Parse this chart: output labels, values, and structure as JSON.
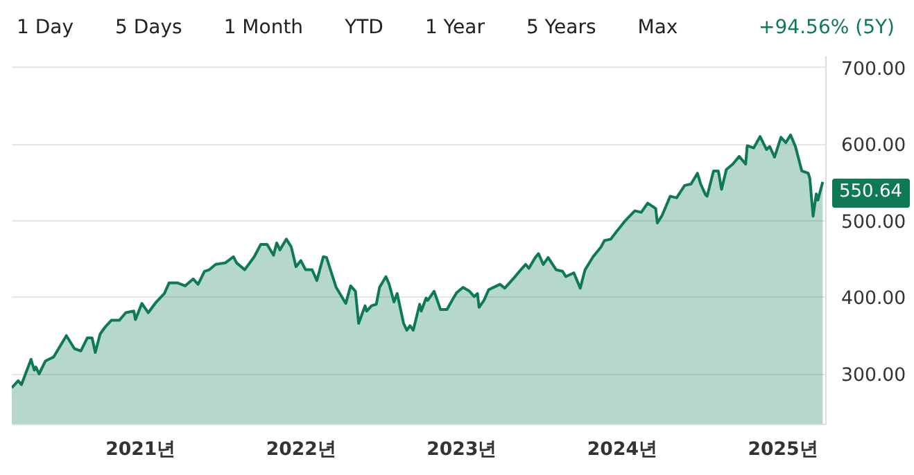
{
  "chart_data": {
    "type": "area",
    "annotations": [
      "1 Day",
      "5 Days",
      "1 Month",
      "YTD",
      "1 Year",
      "5 Years",
      "Max",
      "+94.56% (5Y)"
    ],
    "x": [
      2020.2,
      2020.24,
      2020.26,
      2020.32,
      2020.34,
      2020.35,
      2020.37,
      2020.41,
      2020.46,
      2020.5,
      2020.54,
      2020.59,
      2020.63,
      2020.67,
      2020.7,
      2020.72,
      2020.75,
      2020.78,
      2020.82,
      2020.87,
      2020.91,
      2020.96,
      2020.97,
      2021.01,
      2021.05,
      2021.1,
      2021.15,
      2021.18,
      2021.23,
      2021.28,
      2021.33,
      2021.36,
      2021.4,
      2021.43,
      2021.47,
      2021.53,
      2021.58,
      2021.6,
      2021.65,
      2021.71,
      2021.75,
      2021.79,
      2021.83,
      2021.85,
      2021.87,
      2021.91,
      2021.94,
      2021.97,
      2022.0,
      2022.03,
      2022.07,
      2022.1,
      2022.14,
      2022.16,
      2022.22,
      2022.28,
      2022.31,
      2022.34,
      2022.36,
      2022.4,
      2022.41,
      2022.44,
      2022.47,
      2022.49,
      2022.53,
      2022.55,
      2022.58,
      2022.6,
      2022.64,
      2022.66,
      2022.68,
      2022.7,
      2022.74,
      2022.75,
      2022.78,
      2022.79,
      2022.83,
      2022.87,
      2022.91,
      2022.95,
      2022.97,
      2023.01,
      2023.05,
      2023.08,
      2023.1,
      2023.11,
      2023.14,
      2023.17,
      2023.24,
      2023.27,
      2023.33,
      2023.37,
      2023.4,
      2023.42,
      2023.46,
      2023.48,
      2023.51,
      2023.54,
      2023.59,
      2023.63,
      2023.65,
      2023.7,
      2023.74,
      2023.77,
      2023.82,
      2023.87,
      2023.89,
      2023.93,
      2023.97,
      2024.02,
      2024.08,
      2024.12,
      2024.16,
      2024.21,
      2024.22,
      2024.25,
      2024.3,
      2024.34,
      2024.39,
      2024.43,
      2024.47,
      2024.49,
      2024.52,
      2024.53,
      2024.57,
      2024.6,
      2024.62,
      2024.65,
      2024.69,
      2024.73,
      2024.77,
      2024.78,
      2024.82,
      2024.86,
      2024.9,
      2024.92,
      2024.95,
      2024.99,
      2025.02,
      2025.05,
      2025.08,
      2025.12,
      2025.16,
      2025.17,
      2025.19,
      2025.21,
      2025.22,
      2025.25
    ],
    "series": [
      {
        "color": "#0e7a53",
        "values": [
          282,
          291,
          286,
          319,
          305,
          309,
          300,
          317,
          322,
          336,
          350,
          333,
          330,
          347,
          347,
          328,
          352,
          361,
          370,
          370,
          380,
          382,
          371,
          392,
          380,
          394,
          405,
          419,
          419,
          415,
          424,
          417,
          434,
          436,
          443,
          445,
          453,
          445,
          436,
          453,
          469,
          469,
          455,
          471,
          462,
          476,
          466,
          440,
          448,
          436,
          436,
          422,
          453,
          452,
          413,
          392,
          415,
          408,
          366,
          389,
          382,
          389,
          391,
          413,
          427,
          417,
          394,
          405,
          366,
          357,
          363,
          357,
          391,
          382,
          399,
          396,
          408,
          384,
          384,
          399,
          406,
          413,
          408,
          401,
          405,
          387,
          396,
          410,
          417,
          412,
          426,
          436,
          443,
          438,
          452,
          457,
          443,
          452,
          436,
          434,
          427,
          432,
          412,
          436,
          453,
          466,
          474,
          476,
          487,
          500,
          513,
          511,
          523,
          516,
          497,
          507,
          532,
          530,
          546,
          548,
          562,
          548,
          534,
          532,
          565,
          565,
          541,
          567,
          574,
          584,
          574,
          598,
          595,
          610,
          593,
          597,
          583,
          609,
          602,
          612,
          597,
          565,
          562,
          555,
          506,
          535,
          527,
          550.64
        ],
        "value_labels": [
          null,
          null,
          null,
          null,
          null,
          null,
          null,
          null,
          null,
          null,
          null,
          null,
          null,
          null,
          null,
          null,
          null,
          null,
          null,
          null,
          null,
          null,
          null,
          null,
          null,
          null,
          null,
          null,
          null,
          null,
          null,
          null,
          null,
          null,
          null,
          null,
          null,
          null,
          null,
          null,
          null,
          null,
          null,
          null,
          null,
          null,
          null,
          null,
          null,
          null,
          null,
          null,
          null,
          null,
          null,
          null,
          null,
          null,
          null,
          null,
          null,
          null,
          null,
          null,
          null,
          null,
          null,
          null,
          null,
          null,
          null,
          null,
          null,
          null,
          null,
          null,
          null,
          null,
          null,
          null,
          null,
          null,
          null,
          null,
          null,
          null,
          null,
          null,
          null,
          null,
          null,
          null,
          null,
          null,
          null,
          null,
          null,
          null,
          null,
          null,
          null,
          null,
          null,
          null,
          null,
          null,
          null,
          null,
          null,
          null,
          null,
          null,
          null,
          null,
          null,
          null,
          null,
          null,
          null,
          null,
          null,
          null,
          null,
          null,
          null,
          null,
          null,
          null,
          null,
          null,
          null,
          null,
          null,
          null,
          null,
          null,
          null,
          null,
          null,
          null,
          null,
          null,
          null,
          null,
          null,
          null,
          null,
          "550.64"
        ]
      }
    ],
    "xlim": [
      2020.2,
      2025.27
    ],
    "xticks": [
      {
        "value": 2021,
        "label": "2021년"
      },
      {
        "value": 2022,
        "label": "2022년"
      },
      {
        "value": 2023,
        "label": "2023년"
      },
      {
        "value": 2024,
        "label": "2024년"
      },
      {
        "value": 2025,
        "label": "2025년"
      }
    ],
    "ylim": [
      234,
      715
    ],
    "yticks": [
      {
        "value": 300,
        "label": "300.00"
      },
      {
        "value": 400,
        "label": "400.00"
      },
      {
        "value": 500,
        "label": "500.00"
      },
      {
        "value": 600,
        "label": "600.00"
      },
      {
        "value": 700,
        "label": "700.00"
      }
    ],
    "grid": "y"
  }
}
